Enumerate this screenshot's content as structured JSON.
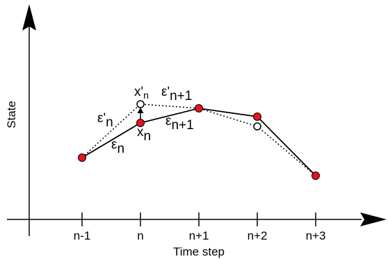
{
  "axes": {
    "x_title": "Time step",
    "y_title": "State",
    "x_ticks": [
      "n-1",
      "n",
      "n+1",
      "n+2",
      "n+3"
    ]
  },
  "labels": {
    "x_prime_n": {
      "base": "x'",
      "sub": "n"
    },
    "x_n": {
      "base": "x",
      "sub": "n"
    },
    "eps_prime_n": {
      "base": "ε'",
      "sub": "n"
    },
    "eps_n": {
      "base": "ε",
      "sub": "n"
    },
    "eps_prime_n1": {
      "base": "ε'",
      "sub": "n+1"
    },
    "eps_n1": {
      "base": "ε",
      "sub": "n+1"
    }
  },
  "colors": {
    "point_fill": "#e8141c",
    "line": "#000000",
    "open_point_fill": "#ffffff"
  }
}
